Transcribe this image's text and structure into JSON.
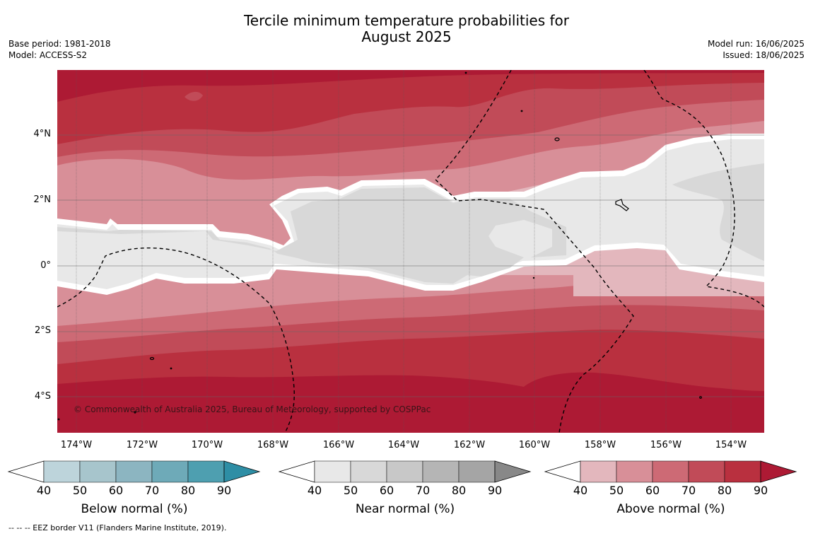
{
  "title_line1": "Tercile minimum temperature probabilities for",
  "title_line2": "August 2025",
  "meta_left": {
    "base_period": "Base period: 1981-2018",
    "model": "Model: ACCESS-S2"
  },
  "meta_right": {
    "model_run": "Model run: 16/06/2025",
    "issued": "Issued: 18/06/2025"
  },
  "map": {
    "lat_labels": [
      "4°N",
      "2°N",
      "0°",
      "2°S",
      "4°S"
    ],
    "lon_labels": [
      "174°W",
      "172°W",
      "170°W",
      "168°W",
      "166°W",
      "164°W",
      "162°W",
      "160°W",
      "158°W",
      "156°W",
      "154°W"
    ],
    "copyright": "© Commonwealth of Australia 2025, Bureau of Meteorology, supported by COSPPac",
    "colors": {
      "above": [
        "#e3b7bd",
        "#d88f98",
        "#cd6a75",
        "#c14b58",
        "#b9303f",
        "#ad1a34"
      ],
      "near": [
        "#e8e8e8",
        "#d8d8d8",
        "#c8c8c8",
        "#b5b5b5",
        "#a5a5a5",
        "#888888"
      ],
      "below": [
        "#bdd4db",
        "#a7c5cc",
        "#8cb5c1",
        "#6eaab8",
        "#4e9fb0",
        "#2e8ea5"
      ]
    }
  },
  "colorbars": [
    {
      "name": "below",
      "label": "Below normal (%)",
      "ticks": [
        "40",
        "50",
        "60",
        "70",
        "80",
        "90"
      ]
    },
    {
      "name": "near",
      "label": "Near normal (%)",
      "ticks": [
        "40",
        "50",
        "60",
        "70",
        "80",
        "90"
      ]
    },
    {
      "name": "above",
      "label": "Above normal (%)",
      "ticks": [
        "40",
        "50",
        "60",
        "70",
        "80",
        "90"
      ]
    }
  ],
  "footnote": "--  --  -- EEZ border V11 (Flanders Marine Institute, 2019)."
}
